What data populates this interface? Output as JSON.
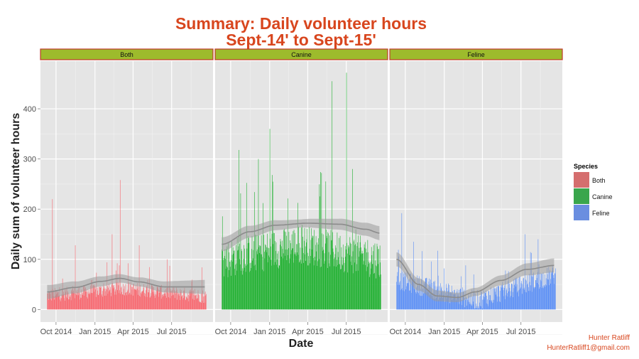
{
  "chart_data": {
    "type": "bar",
    "title_line1": "Summary: Daily volunteer hours",
    "title_line2": "Sept-14' to Sept-15'",
    "xlabel": "Date",
    "ylabel": "Daily sum of volunteer hours",
    "x_ticks": [
      "Oct 2014",
      "Jan 2015",
      "Apr 2015",
      "Jul 2015"
    ],
    "y_ticks": [
      0,
      100,
      200,
      300,
      400
    ],
    "ylim": [
      -25,
      495
    ],
    "x_range": [
      "2014-09-01",
      "2015-09-30"
    ],
    "tick_dates": [
      "2014-10-01",
      "2015-01-01",
      "2015-04-01",
      "2015-07-01"
    ],
    "legend_title": "Species",
    "legend_placement": "right",
    "facet_strip_color": "#9dbb2c",
    "facet_strip_border": "#c0392b",
    "panel_background": "#e5e5e5",
    "grid": true,
    "series": [
      {
        "name": "Both",
        "color": "#f8666e",
        "legend_color": "#d56e6e",
        "data_start": "2014-09-10",
        "data_end": "2015-09-20",
        "base_start": 28,
        "base_mid": 42,
        "base_end": 26,
        "noise": 14,
        "peaks": [
          [
            "2014-09-22",
            220
          ],
          [
            "2015-03-01",
            258
          ],
          [
            "2014-11-15",
            128
          ],
          [
            "2015-02-10",
            150
          ],
          [
            "2015-04-15",
            128
          ],
          [
            "2015-06-20",
            100
          ],
          [
            "2015-09-10",
            84
          ]
        ],
        "smooth": [
          [
            "2014-09-10",
            35
          ],
          [
            "2014-11-15",
            44
          ],
          [
            "2015-01-15",
            56
          ],
          [
            "2015-03-01",
            62
          ],
          [
            "2015-04-15",
            55
          ],
          [
            "2015-06-15",
            45
          ],
          [
            "2015-09-20",
            45
          ]
        ]
      },
      {
        "name": "Canine",
        "color": "#1db02e",
        "legend_color": "#3aa64c",
        "data_start": "2014-09-10",
        "data_end": "2015-09-20",
        "base_start": 100,
        "base_mid": 130,
        "base_end": 100,
        "noise": 40,
        "peaks": [
          [
            "2015-05-28",
            455
          ],
          [
            "2015-07-01",
            472
          ],
          [
            "2015-01-01",
            360
          ],
          [
            "2014-10-20",
            318
          ],
          [
            "2015-07-15",
            280
          ],
          [
            "2014-12-05",
            300
          ]
        ],
        "smooth": [
          [
            "2014-09-10",
            130
          ],
          [
            "2014-11-15",
            155
          ],
          [
            "2015-01-15",
            168
          ],
          [
            "2015-04-01",
            172
          ],
          [
            "2015-06-15",
            170
          ],
          [
            "2015-08-15",
            160
          ],
          [
            "2015-09-20",
            152
          ]
        ]
      },
      {
        "name": "Feline",
        "color": "#5b8ff6",
        "legend_color": "#6a8ee0",
        "data_start": "2014-09-10",
        "data_end": "2015-09-20",
        "base_start": 60,
        "base_mid": 18,
        "base_end": 70,
        "noise": 20,
        "peaks": [
          [
            "2014-09-22",
            192
          ],
          [
            "2015-07-10",
            150
          ],
          [
            "2015-02-20",
            88
          ],
          [
            "2015-08-10",
            140
          ],
          [
            "2014-10-20",
            135
          ]
        ],
        "smooth": [
          [
            "2014-09-10",
            100
          ],
          [
            "2014-11-01",
            50
          ],
          [
            "2014-12-15",
            27
          ],
          [
            "2015-02-01",
            24
          ],
          [
            "2015-03-15",
            35
          ],
          [
            "2015-05-15",
            58
          ],
          [
            "2015-07-15",
            80
          ],
          [
            "2015-09-20",
            88
          ]
        ]
      }
    ]
  },
  "credit": {
    "name": "Hunter Ratliff",
    "email": "HunterRatliff1@gmail.com"
  }
}
